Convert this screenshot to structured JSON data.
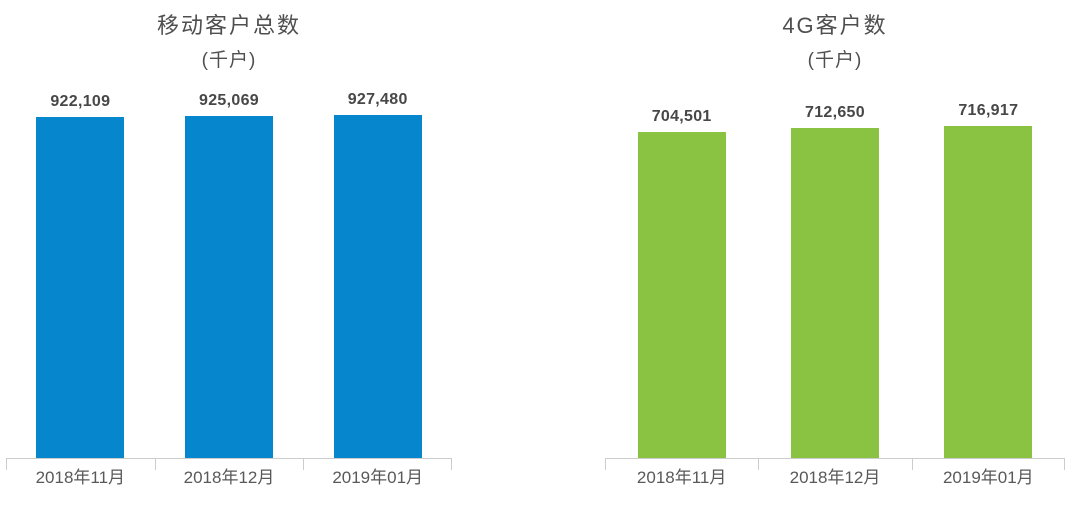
{
  "figure": {
    "background_color": "#ffffff",
    "axis_color": "#cccccc",
    "title_color": "#4f4f4f",
    "value_label_color": "#474747",
    "tick_label_color": "#595959"
  },
  "chart_data": [
    {
      "type": "bar",
      "title": "移动客户总数",
      "subtitle": "(千户)",
      "categories": [
        "2018年11月",
        "2018年12月",
        "2019年01月"
      ],
      "values": [
        922109,
        925069,
        927480
      ],
      "value_labels": [
        "922,109",
        "925,069",
        "927,480"
      ],
      "bar_color": "#0687cd",
      "ylim": [
        0,
        1000000
      ],
      "xlabel": "",
      "ylabel": "",
      "grid": false,
      "legend": "none",
      "y_axis_visible": false,
      "data_labels": "above-bars"
    },
    {
      "type": "bar",
      "title": "4G客户数",
      "subtitle": "(千户)",
      "categories": [
        "2018年11月",
        "2018年12月",
        "2019年01月"
      ],
      "values": [
        704501,
        712650,
        716917
      ],
      "value_labels": [
        "704,501",
        "712,650",
        "716,917"
      ],
      "bar_color": "#8ac342",
      "ylim": [
        0,
        800000
      ],
      "xlabel": "",
      "ylabel": "",
      "grid": false,
      "legend": "none",
      "y_axis_visible": false,
      "data_labels": "above-bars"
    }
  ]
}
